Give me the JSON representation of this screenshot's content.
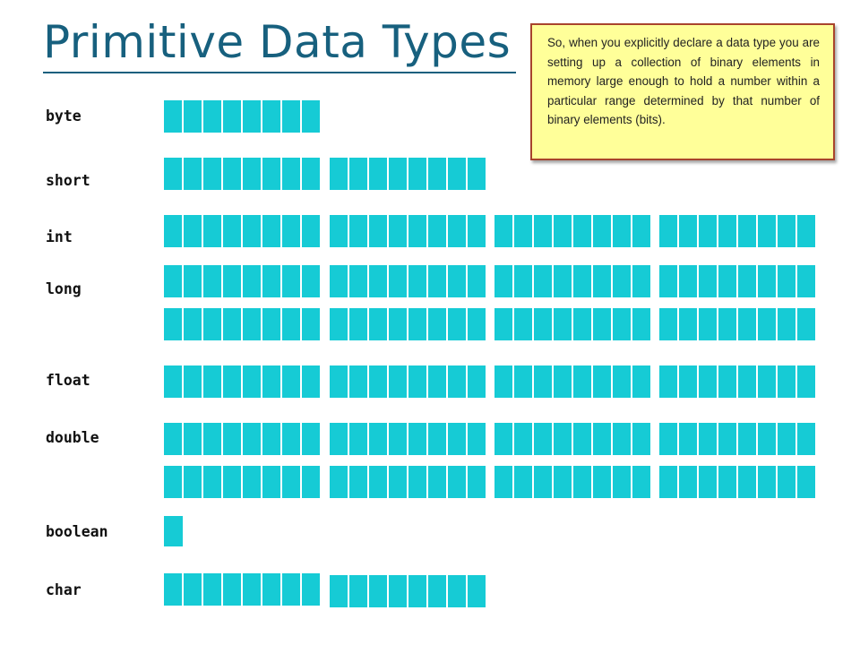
{
  "title": "Primitive Data Types",
  "note": "So, when you explicitly declare a data type you are setting up a collection of binary elements in memory large enough to hold a number within a particular range determined by that number of binary elements (bits).",
  "bit_color": "#16cbd5",
  "types": [
    {
      "label": "byte",
      "bits": 8
    },
    {
      "label": "short",
      "bits": 16
    },
    {
      "label": "int",
      "bits": 32
    },
    {
      "label": "long",
      "bits": 64
    },
    {
      "label": "float",
      "bits": 32
    },
    {
      "label": "double",
      "bits": 64
    },
    {
      "label": "boolean",
      "bits": 1
    },
    {
      "label": "char",
      "bits": 16
    }
  ]
}
